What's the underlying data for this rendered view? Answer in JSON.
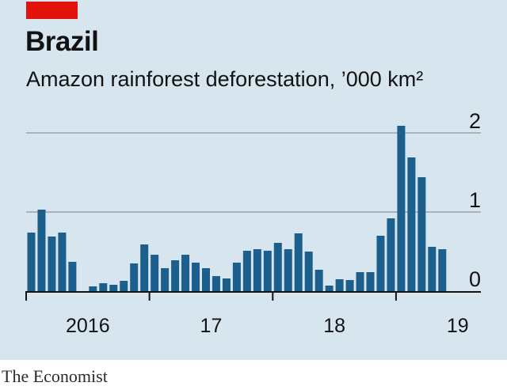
{
  "title": "Brazil",
  "subtitle": "Amazon rainforest deforestation, ’000 km²",
  "source": "The Economist",
  "colors": {
    "background": "#d6e5ee",
    "bar": "#1d5f8c",
    "accent": "#e3120b",
    "grid": "#a7b4bd",
    "axis": "#121212"
  },
  "chart_data": {
    "type": "bar",
    "title": "Amazon rainforest deforestation, ’000 km²",
    "xlabel": "",
    "ylabel": "",
    "ylim": [
      0,
      2.2
    ],
    "y_ticks": [
      0,
      1,
      2
    ],
    "y_tick_labels": [
      "0",
      "1",
      "2"
    ],
    "grid": true,
    "x_tick_labels": [
      {
        "label": "2016",
        "month_index": 0
      },
      {
        "label": "17",
        "month_index": 12
      },
      {
        "label": "18",
        "month_index": 24
      },
      {
        "label": "19",
        "month_index": 36
      }
    ],
    "year_boundaries": [
      0,
      12,
      24,
      36,
      48
    ],
    "values": [
      0.74,
      1.03,
      0.69,
      0.74,
      0.37,
      0.0,
      0.06,
      0.1,
      0.08,
      0.13,
      0.35,
      0.59,
      0.46,
      0.29,
      0.39,
      0.46,
      0.36,
      0.29,
      0.19,
      0.16,
      0.36,
      0.51,
      0.53,
      0.51,
      0.61,
      0.53,
      0.73,
      0.5,
      0.27,
      0.07,
      0.15,
      0.14,
      0.24,
      0.24,
      0.7,
      0.92,
      2.09,
      1.69,
      1.44,
      0.56,
      0.53
    ]
  }
}
